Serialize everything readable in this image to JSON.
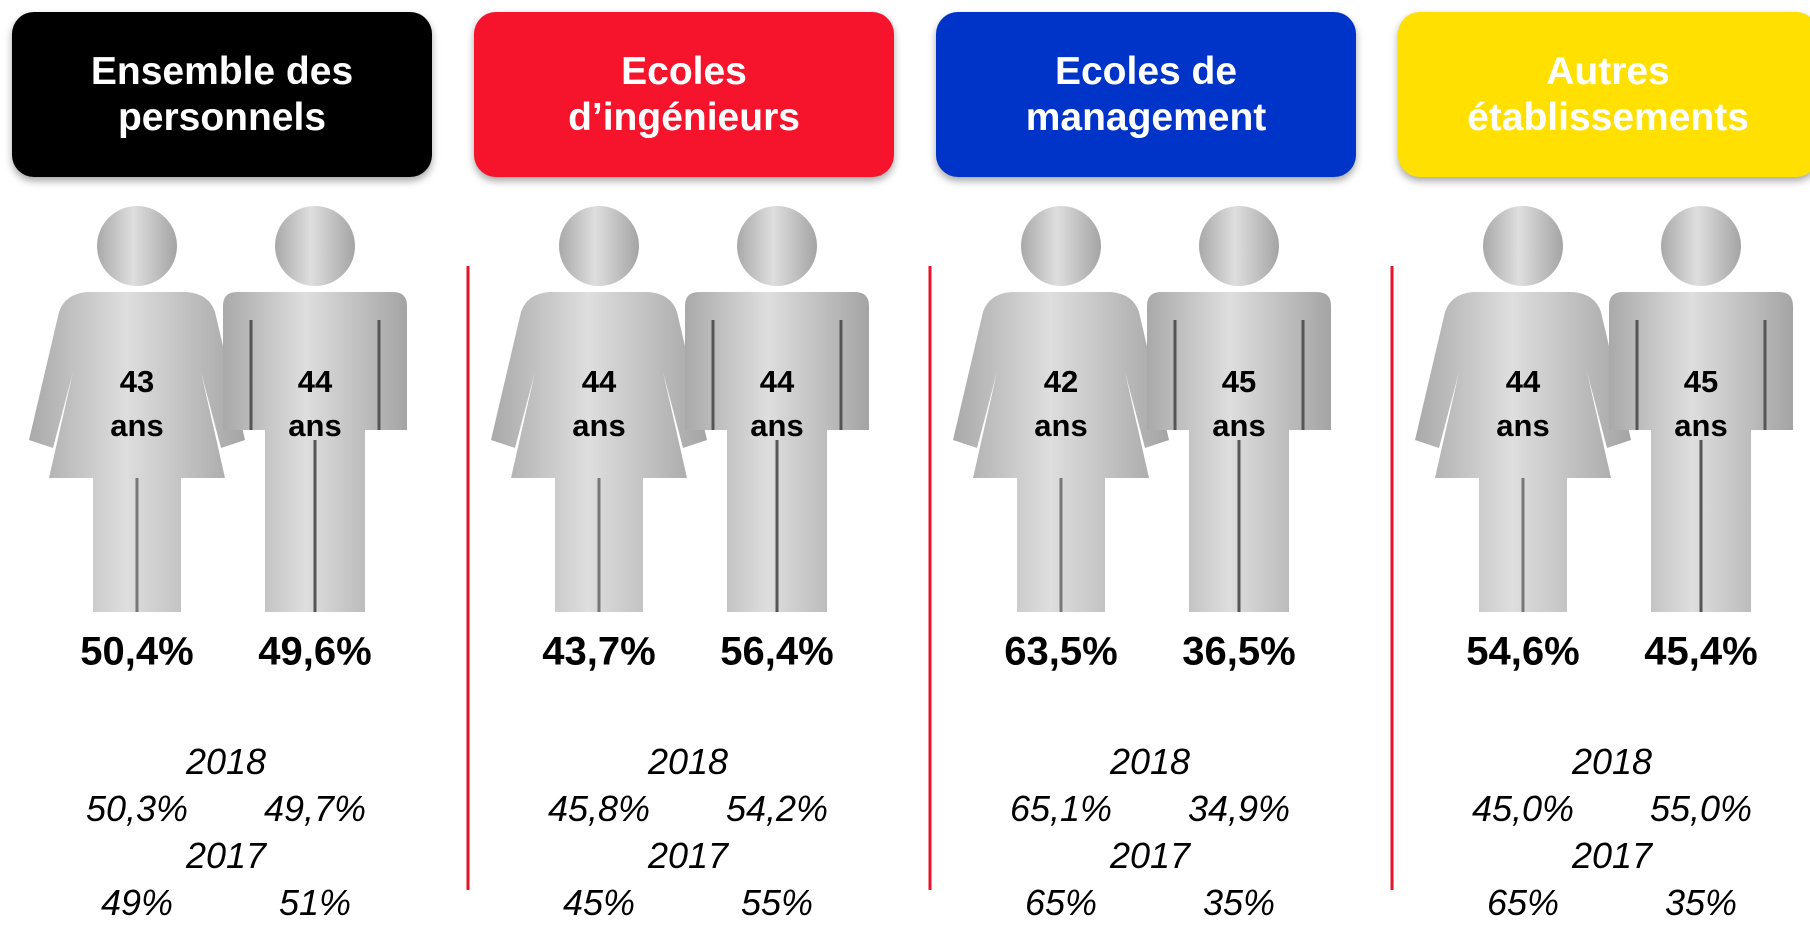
{
  "panels": [
    {
      "title": "Ensemble des personnels",
      "color": "#000000",
      "title_color": "#ffffff",
      "woman": {
        "age": "43",
        "unit": "ans",
        "share": "50,4%"
      },
      "man": {
        "age": "44",
        "unit": "ans",
        "share": "49,6%"
      },
      "history": [
        {
          "year": "2018",
          "woman": "50,3%",
          "man": "49,7%"
        },
        {
          "year": "2017",
          "woman": "49%",
          "man": "51%"
        }
      ]
    },
    {
      "title": "Ecoles d’ingénieurs",
      "color": "#f5142c",
      "title_color": "#ffffff",
      "woman": {
        "age": "44",
        "unit": "ans",
        "share": "43,7%"
      },
      "man": {
        "age": "44",
        "unit": "ans",
        "share": "56,4%"
      },
      "history": [
        {
          "year": "2018",
          "woman": "45,8%",
          "man": "54,2%"
        },
        {
          "year": "2017",
          "woman": "45%",
          "man": "55%"
        }
      ]
    },
    {
      "title": "Ecoles de management",
      "color": "#0033c8",
      "title_color": "#ffffff",
      "woman": {
        "age": "42",
        "unit": "ans",
        "share": "63,5%"
      },
      "man": {
        "age": "45",
        "unit": "ans",
        "share": "36,5%"
      },
      "history": [
        {
          "year": "2018",
          "woman": "65,1%",
          "man": "34,9%"
        },
        {
          "year": "2017",
          "woman": "65%",
          "man": "35%"
        }
      ]
    },
    {
      "title": "Autres établissements",
      "color": "#ffe000",
      "title_color": "#ffffff",
      "woman": {
        "age": "44",
        "unit": "ans",
        "share": "54,6%"
      },
      "man": {
        "age": "45",
        "unit": "ans",
        "share": "45,4%"
      },
      "history": [
        {
          "year": "2018",
          "woman": "45,0%",
          "man": "55,0%"
        },
        {
          "year": "2017",
          "woman": "65%",
          "man": "35%"
        }
      ]
    }
  ]
}
